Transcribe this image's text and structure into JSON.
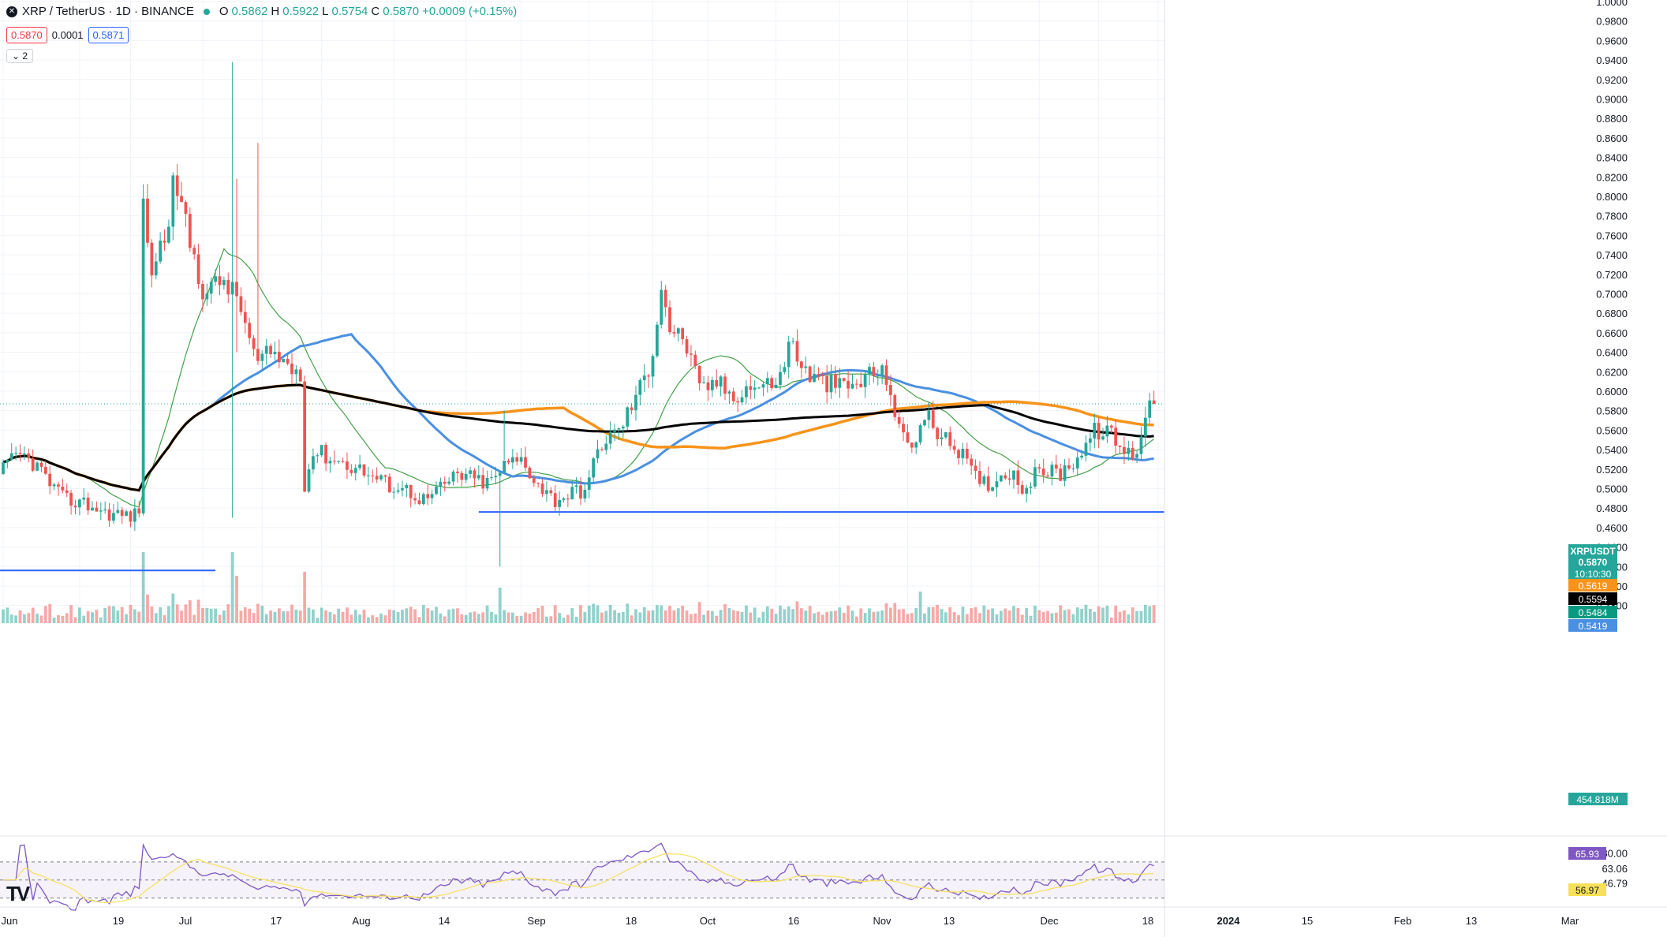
{
  "header": {
    "symbol": "XRP / TetherUS · 1D · BINANCE",
    "ohlc": [
      {
        "k": "O",
        "v": "0.5862"
      },
      {
        "k": "H",
        "v": "0.5922"
      },
      {
        "k": "L",
        "v": "0.5754"
      },
      {
        "k": "C",
        "v": "0.5870"
      },
      {
        "k": "",
        "v": "+0.0009 (+0.15%)"
      }
    ],
    "sell_price": "0.5870",
    "spread": "0.0001",
    "buy_price": "0.5871",
    "indicators_count": "2"
  },
  "price_axis": {
    "ticks": [
      "1.0000",
      "0.9800",
      "0.9600",
      "0.9400",
      "0.9200",
      "0.9000",
      "0.8800",
      "0.8600",
      "0.8400",
      "0.8200",
      "0.8000",
      "0.7800",
      "0.7600",
      "0.7400",
      "0.7200",
      "0.7000",
      "0.6800",
      "0.6600",
      "0.6400",
      "0.6200",
      "0.6000",
      "0.5800",
      "0.5600",
      "0.5400",
      "0.5200",
      "0.5000",
      "0.4800",
      "0.4600",
      "0.4400",
      "0.4200",
      "0.4000",
      "0.3800"
    ],
    "labels": [
      {
        "text": "XRPUSDT",
        "color": "#26a69a",
        "price": 0.5895,
        "bold": true
      },
      {
        "text": "0.5870",
        "color": "#26a69a",
        "price": 0.587,
        "bold": true
      },
      {
        "text": "10:10:30",
        "color": "#26a69a",
        "price": 0.5855,
        "bold": false
      },
      {
        "text": "0.5619",
        "color": "#f7931a",
        "price": 0.5619,
        "bold": false
      },
      {
        "text": "0.5594",
        "color": "#000000",
        "price": 0.5594,
        "bold": false
      },
      {
        "text": "0.5484",
        "color": "#089981",
        "price": 0.5484,
        "bold": false
      },
      {
        "text": "0.5419",
        "color": "#4a90e2",
        "price": 0.5419,
        "bold": false
      }
    ],
    "volume_label": "454.818M"
  },
  "rsi_axis": {
    "ticks": [
      "80.00",
      "63.06",
      "46.79"
    ],
    "labels": [
      {
        "text": "65.93",
        "color": "#7e57c2"
      },
      {
        "text": "56.97",
        "color": "#f7e05a"
      }
    ]
  },
  "time_axis": [
    "Jun",
    "19",
    "Jul",
    "17",
    "Aug",
    "14",
    "Sep",
    "18",
    "Oct",
    "16",
    "Nov",
    "13",
    "Dec",
    "18",
    "2024",
    "15",
    "Feb",
    "13",
    "Mar"
  ],
  "colors": {
    "up": "#26a69a",
    "down": "#ef5350",
    "ma20": "#43a047",
    "ma50": "#4a90e2",
    "ma100": "#f7931a",
    "ma200": "#000000",
    "rsi": "#7e57c2",
    "rsi_ma": "#f7e05a",
    "rsi_band": "#7e57c2"
  },
  "chart_data": {
    "type": "candlestick",
    "title": "XRP / TetherUS · 1D · BINANCE",
    "ylim": [
      0.37,
      1.0
    ],
    "y_scale": "linear",
    "candles": [],
    "volume": [],
    "ma_lines": [],
    "rsi": [],
    "rsi_ma": [],
    "horizontal_lines": [
      {
        "price": 0.476,
        "from": "Sep 13",
        "to": "Mar 1",
        "color": "#2962ff"
      },
      {
        "price": 0.416,
        "from": "Jun",
        "to": "Jul 17",
        "color": "#2962ff"
      }
    ]
  },
  "tv_logo": "TV"
}
